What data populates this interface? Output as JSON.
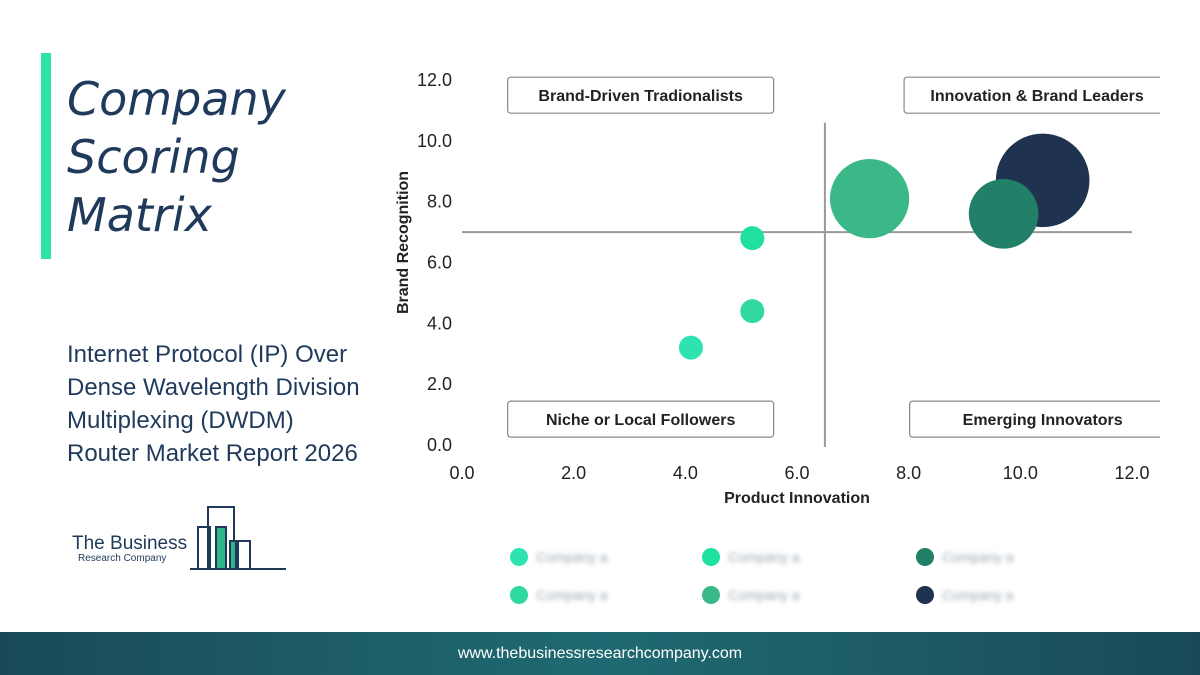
{
  "title": "Company Scoring Matrix",
  "subtitle": "Internet Protocol (IP) Over Dense Wavelength Division Multiplexing (DWDM) Router Market Report 2026",
  "logo": {
    "name": "The Business",
    "sub": "Research Company"
  },
  "footer": {
    "url": "www.thebusinessresearchcompany.com"
  },
  "colors": {
    "accent": "#2fe3a5",
    "navy": "#1f3a5a",
    "footer": "#1f6a72"
  },
  "chart_data": {
    "type": "scatter",
    "xlabel": "Product Innovation",
    "ylabel": "Brand Recognition",
    "xlim": [
      0,
      12
    ],
    "ylim": [
      0,
      12
    ],
    "x_ticks": [
      "0.0",
      "2.0",
      "4.0",
      "6.0",
      "8.0",
      "10.0",
      "12.0"
    ],
    "y_ticks": [
      "0.0",
      "2.0",
      "4.0",
      "6.0",
      "8.0",
      "10.0",
      "12.0"
    ],
    "divider": {
      "x": 6.5,
      "y": 7.0
    },
    "quadrants": {
      "top_left": "Brand-Driven Tradionalists",
      "top_right": "Innovation & Brand Leaders",
      "bottom_left": "Niche or Local Followers",
      "bottom_right": "Emerging Innovators"
    },
    "points": [
      {
        "x": 4.1,
        "y": 3.2,
        "size": 1.0,
        "color": "#2fe3b0"
      },
      {
        "x": 5.2,
        "y": 4.4,
        "size": 1.0,
        "color": "#2fd9a0"
      },
      {
        "x": 5.2,
        "y": 6.8,
        "size": 1.0,
        "color": "#1fe0a0"
      },
      {
        "x": 7.3,
        "y": 8.1,
        "size": 3.3,
        "color": "#3bb888"
      },
      {
        "x": 10.4,
        "y": 8.7,
        "size": 3.9,
        "color": "#1f3350"
      },
      {
        "x": 9.7,
        "y": 7.6,
        "size": 2.9,
        "color": "#238068"
      }
    ],
    "legend": [
      {
        "label": "Company a",
        "color": "#2fe3b0"
      },
      {
        "label": "Company a",
        "color": "#1fe0a0"
      },
      {
        "label": "Company a",
        "color": "#238068"
      },
      {
        "label": "Company a",
        "color": "#2fd9a0"
      },
      {
        "label": "Company a",
        "color": "#3bb888"
      },
      {
        "label": "Company a",
        "color": "#1f3350"
      }
    ]
  }
}
